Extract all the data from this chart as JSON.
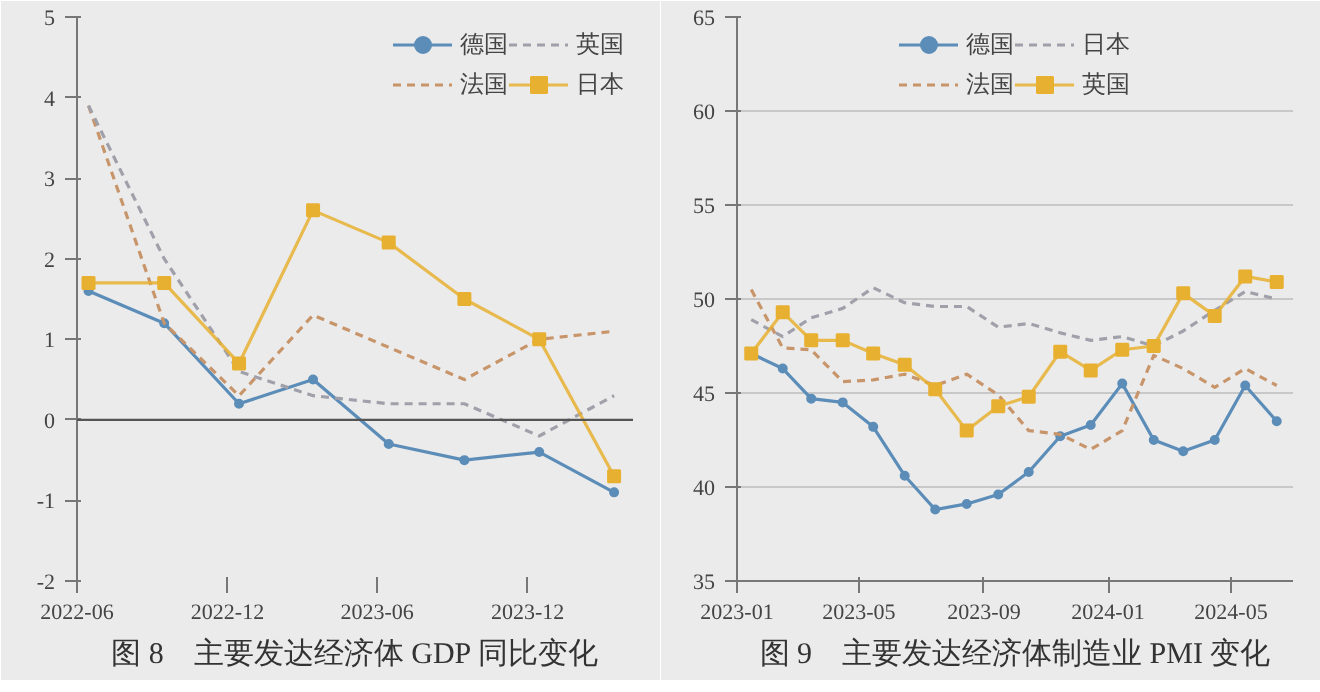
{
  "chart_data": [
    {
      "type": "line",
      "title": "图 8　主要发达经济体 GDP 同比变化",
      "x": [
        "2022-06-15",
        "2022-09-15",
        "2022-12-15",
        "2023-03-15",
        "2023-06-15",
        "2023-09-15",
        "2023-12-15",
        "2024-03-15"
      ],
      "series": [
        {
          "name": "德国",
          "color": "#5b8db8",
          "marker": "circle",
          "line_style": "solid",
          "values": [
            1.6,
            1.2,
            0.2,
            0.5,
            -0.3,
            -0.5,
            -0.4,
            -0.9
          ]
        },
        {
          "name": "法国",
          "color": "#c8956b",
          "marker": "none",
          "line_style": "dashed",
          "values": [
            3.9,
            1.2,
            0.3,
            1.3,
            0.9,
            0.5,
            1.0,
            1.1
          ]
        },
        {
          "name": "英国",
          "color": "#a0a0aa",
          "marker": "none",
          "line_style": "dashed",
          "values": [
            3.9,
            2.0,
            0.6,
            0.3,
            0.2,
            0.2,
            -0.2,
            0.3
          ]
        },
        {
          "name": "日本",
          "color": "#e8b030",
          "marker": "square",
          "line_style": "solid",
          "values": [
            1.7,
            1.7,
            0.7,
            2.6,
            2.2,
            1.5,
            1.0,
            -0.7
          ]
        }
      ],
      "xlim": [
        "2022-06",
        "2024-04-07"
      ],
      "xticks": [
        "2022-06",
        "2022-12",
        "2023-06",
        "2023-12"
      ],
      "ylim": [
        -2,
        5
      ],
      "yticks": [
        -2,
        -1,
        0,
        1,
        2,
        3,
        4,
        5
      ],
      "grid": false,
      "legend": "top right",
      "ref_lines": [
        {
          "axis": "y",
          "value": 0,
          "color": "#555555"
        }
      ]
    },
    {
      "type": "line",
      "title": "图 9　主要发达经济体制造业 PMI 变化",
      "x": [
        "2023-01-15",
        "2023-02-15",
        "2023-03-15",
        "2023-04-15",
        "2023-05-15",
        "2023-06-15",
        "2023-07-15",
        "2023-08-15",
        "2023-09-15",
        "2023-10-15",
        "2023-11-15",
        "2023-12-15",
        "2024-01-15",
        "2024-02-15",
        "2024-03-15",
        "2024-04-15",
        "2024-05-15",
        "2024-06-15"
      ],
      "series": [
        {
          "name": "德国",
          "color": "#5b8db8",
          "marker": "circle",
          "line_style": "solid",
          "values": [
            47.1,
            46.3,
            44.7,
            44.5,
            43.2,
            40.6,
            38.8,
            39.1,
            39.6,
            40.8,
            42.7,
            43.3,
            45.5,
            42.5,
            41.9,
            42.5,
            45.4,
            43.5
          ]
        },
        {
          "name": "法国",
          "color": "#c8956b",
          "marker": "none",
          "line_style": "dashed",
          "values": [
            50.5,
            47.4,
            47.3,
            45.6,
            45.7,
            46.0,
            45.4,
            46.0,
            44.9,
            43.0,
            42.8,
            42.0,
            43.0,
            47.0,
            46.3,
            45.3,
            46.3,
            45.4
          ]
        },
        {
          "name": "日本",
          "color": "#a0a0aa",
          "marker": "none",
          "line_style": "dashed",
          "values": [
            48.9,
            48.0,
            49.0,
            49.5,
            50.6,
            49.8,
            49.6,
            49.6,
            48.5,
            48.7,
            48.2,
            47.8,
            48.0,
            47.5,
            48.3,
            49.4,
            50.4,
            50.0
          ]
        },
        {
          "name": "英国",
          "color": "#e8b030",
          "marker": "square",
          "line_style": "solid",
          "values": [
            47.1,
            49.3,
            47.8,
            47.8,
            47.1,
            46.5,
            45.2,
            43.0,
            44.3,
            44.8,
            47.2,
            46.2,
            47.3,
            47.5,
            50.3,
            49.1,
            51.2,
            50.9
          ]
        }
      ],
      "xlim": [
        "2023-01",
        "2024-07"
      ],
      "xticks": [
        "2023-01",
        "2023-05",
        "2023-09",
        "2024-01",
        "2024-05"
      ],
      "ylim": [
        35,
        65
      ],
      "yticks": [
        35,
        40,
        45,
        50,
        55,
        60,
        65
      ],
      "grid": "y",
      "legend": "top"
    }
  ]
}
